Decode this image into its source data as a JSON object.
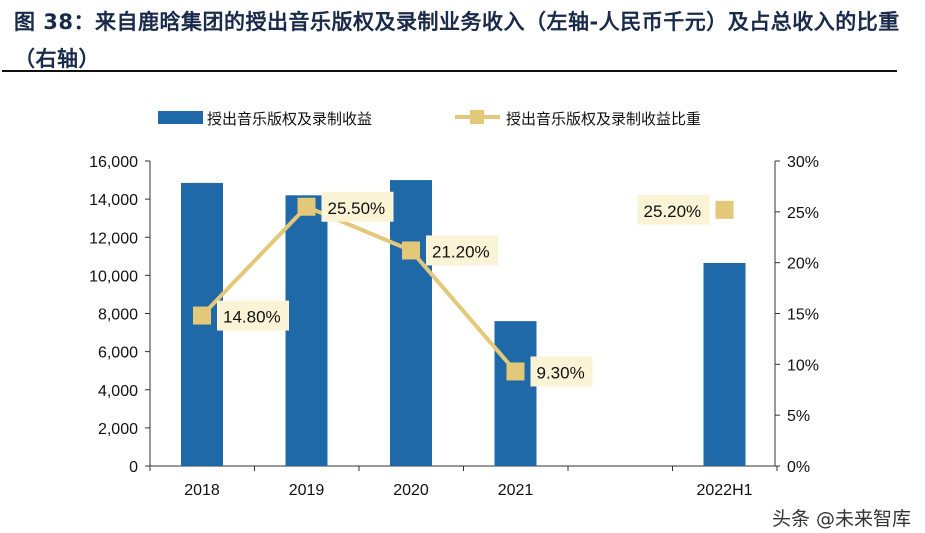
{
  "title": "图 38：来自鹿晗集团的授出音乐版权及录制业务收入（左轴-人民币千元）及占总收入的比重（右轴）",
  "watermark": "头条 @未来智库",
  "chart_data": {
    "type": "bar+line",
    "categories": [
      "2018",
      "2019",
      "2020",
      "2021",
      "2022H1"
    ],
    "series": [
      {
        "name": "授出音乐版权及录制收益",
        "type": "bar",
        "axis": "left",
        "color": "#1f69a8",
        "values": [
          14850,
          14200,
          15000,
          7600,
          10650
        ]
      },
      {
        "name": "授出音乐版权及录制收益比重",
        "type": "line",
        "axis": "right",
        "color": "#e2c878",
        "values": [
          14.8,
          25.5,
          21.2,
          9.3,
          25.2
        ],
        "labels": [
          "14.80%",
          "25.50%",
          "21.20%",
          "9.30%",
          "25.20%"
        ]
      }
    ],
    "left_axis": {
      "ylim": [
        0,
        16000
      ],
      "ticks": [
        "0",
        "2,000",
        "4,000",
        "6,000",
        "8,000",
        "10,000",
        "12,000",
        "14,000",
        "16,000"
      ]
    },
    "right_axis": {
      "ylim": [
        0,
        30
      ],
      "ticks": [
        "0%",
        "5%",
        "10%",
        "15%",
        "20%",
        "25%",
        "30%"
      ]
    },
    "legend": "top",
    "grid": false
  }
}
